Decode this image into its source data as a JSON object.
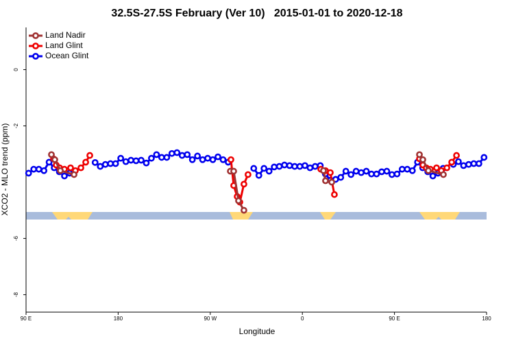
{
  "chart_data": {
    "type": "line",
    "title": "32.5S-27.5S February (Ver 10)   2015-01-01 to 2020-12-18",
    "xlabel": "Longitude",
    "ylabel": "XCO2 - MLO trend (ppm)",
    "xlim": [
      90,
      540
    ],
    "ylim": [
      -8.62,
      1.5
    ],
    "xticks": [
      {
        "value": 90,
        "label": "90 E"
      },
      {
        "value": 180,
        "label": "180"
      },
      {
        "value": 270,
        "label": "90 W"
      },
      {
        "value": 360,
        "label": "0"
      },
      {
        "value": 450,
        "label": "90 E"
      },
      {
        "value": 540,
        "label": "180"
      }
    ],
    "yticks": [
      0,
      -2,
      -6,
      -8
    ],
    "legend": "top-left",
    "series": [
      {
        "name": "Land Nadir",
        "color": "#a03232",
        "x": [
          114.8,
          118.1,
          123.5,
          136.9,
          null,
          289.6,
          292.9,
          297.6,
          302.9,
          null,
          380.6,
          382.6,
          388.7,
          null,
          474.4,
          477.7,
          483.1,
          497.8
        ],
        "values": [
          -3.02,
          -3.2,
          -3.59,
          -3.73,
          null,
          -3.61,
          -3.61,
          -4.66,
          -5.0,
          null,
          -3.59,
          -3.95,
          -4.0,
          null,
          -3.02,
          -3.2,
          -3.59,
          -3.73
        ]
      },
      {
        "name": "Land Glint",
        "color": "#ee0000",
        "x": [
          116.8,
          119.5,
          122.8,
          127.5,
          133.5,
          138.2,
          143.6,
          148.3,
          152.3,
          null,
          290.2,
          292.9,
          296.3,
          298.9,
          302.9,
          306.9,
          null,
          378.0,
          382.6,
          387.3,
          391.3,
          null,
          474.4,
          477.7,
          481.1,
          485.1,
          491.1,
          495.8,
          501.2,
          505.9,
          510.6
        ],
        "values": [
          -3.17,
          -3.39,
          -3.49,
          -3.54,
          -3.49,
          -3.59,
          -3.49,
          -3.29,
          -3.05,
          null,
          -3.2,
          -4.12,
          -4.51,
          -4.71,
          -4.07,
          -3.73,
          null,
          -3.54,
          -3.59,
          -3.66,
          -4.44,
          null,
          -3.17,
          -3.39,
          -3.49,
          -3.54,
          -3.49,
          -3.59,
          -3.49,
          -3.29,
          -3.05
        ]
      },
      {
        "name": "Ocean Glint",
        "color": "#0000ee",
        "x": [
          92.5,
          97.5,
          102.5,
          107.5,
          112.5,
          117.5,
          122.5,
          127.5,
          132.5,
          137.5,
          142.5,
          147.5,
          152.5,
          157.5,
          162.5,
          167.5,
          172.5,
          177.5,
          182.5,
          187.5,
          192.5,
          197.5,
          202.5,
          207.5,
          212.5,
          217.5,
          222.5,
          227.5,
          232.5,
          237.5,
          242.5,
          247.5,
          252.5,
          257.5,
          262.5,
          267.5,
          272.5,
          277.5,
          282.5,
          287.5,
          292.5,
          297.5,
          302.5,
          307.5,
          312.5,
          317.5,
          322.5,
          327.5,
          332.5,
          337.5,
          342.5,
          347.5,
          352.5,
          357.5,
          362.5,
          367.5,
          372.5,
          377.5,
          382.5,
          387.5,
          392.5,
          397.5,
          402.5,
          407.5,
          412.5,
          417.5,
          422.5,
          427.5,
          432.5,
          437.5,
          442.5,
          447.5,
          452.5,
          457.5,
          462.5,
          467.5,
          472.5,
          477.5,
          482.5,
          487.5,
          492.5,
          497.5,
          502.5,
          507.5,
          512.5,
          517.5,
          522.5,
          527.5,
          532.5,
          537.5
        ],
        "values": [
          -3.68,
          -3.54,
          -3.54,
          -3.59,
          -3.29,
          -3.49,
          -3.63,
          -3.78,
          -3.68,
          null,
          null,
          null,
          null,
          -3.3,
          -3.44,
          -3.37,
          -3.34,
          -3.34,
          -3.15,
          -3.27,
          -3.22,
          -3.24,
          -3.22,
          -3.32,
          -3.15,
          -3.02,
          -3.12,
          -3.12,
          -2.98,
          -2.95,
          -3.05,
          -3.02,
          -3.2,
          -3.07,
          -3.2,
          -3.15,
          -3.2,
          -3.1,
          -3.2,
          -3.29,
          null,
          null,
          null,
          null,
          -3.51,
          -3.76,
          -3.51,
          -3.61,
          -3.46,
          -3.44,
          -3.39,
          -3.41,
          -3.44,
          -3.44,
          -3.41,
          -3.49,
          -3.44,
          -3.41,
          -3.71,
          -3.93,
          -3.9,
          -3.83,
          -3.61,
          -3.73,
          -3.61,
          -3.66,
          -3.61,
          -3.71,
          -3.71,
          -3.63,
          -3.61,
          -3.73,
          -3.71,
          -3.54,
          -3.54,
          -3.59,
          -3.29,
          -3.49,
          -3.63,
          -3.78,
          -3.68,
          -3.51,
          null,
          -3.37,
          -3.27,
          -3.41,
          -3.37,
          -3.34,
          -3.34,
          -3.12
        ]
      }
    ]
  }
}
